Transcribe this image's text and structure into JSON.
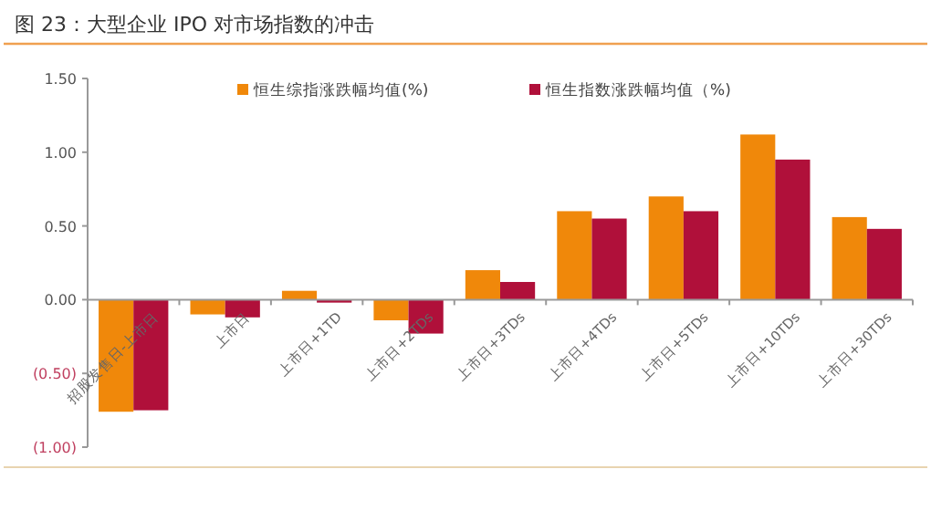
{
  "chart_data": {
    "type": "bar",
    "title": "图 23：大型企业 IPO 对市场指数的冲击",
    "categories": [
      "招股发售日-上市日",
      "上市日",
      "上市日+1TD",
      "上市日+2TDs",
      "上市日+3TDs",
      "上市日+4TDs",
      "上市日+5TDs",
      "上市日+10TDs",
      "上市日+30TDs"
    ],
    "series": [
      {
        "name": "恒生综指涨跌幅均值(%)",
        "color": "#f0880a",
        "values": [
          -0.76,
          -0.1,
          0.06,
          -0.14,
          0.2,
          0.6,
          0.7,
          1.12,
          0.56
        ]
      },
      {
        "name": "恒生指数涨跌幅均值（%)",
        "color": "#b0103a",
        "values": [
          -0.75,
          -0.12,
          -0.02,
          -0.23,
          0.12,
          0.55,
          0.6,
          0.95,
          0.48
        ]
      }
    ],
    "ylim": [
      -1,
      1.5
    ],
    "yticks": [
      {
        "value": -1,
        "label": "(1.00)"
      },
      {
        "value": -0.5,
        "label": "(0.50)"
      },
      {
        "value": 0,
        "label": "0.00"
      },
      {
        "value": 0.5,
        "label": "0.50"
      },
      {
        "value": 1,
        "label": "1.00"
      },
      {
        "value": 1.5,
        "label": "1.50"
      }
    ],
    "legend": "top",
    "grid": false
  }
}
